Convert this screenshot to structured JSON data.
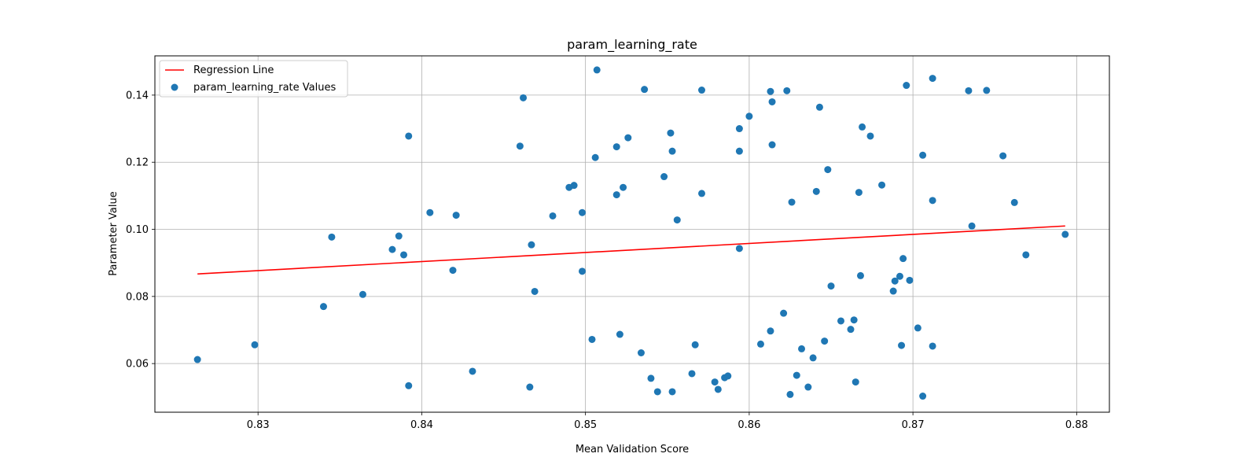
{
  "chart_data": {
    "type": "scatter",
    "title": "param_learning_rate",
    "xlabel": "Mean Validation Score",
    "ylabel": "Parameter Value",
    "xlim": [
      0.8237,
      0.882
    ],
    "ylim": [
      0.0455,
      0.1517
    ],
    "xticks": [
      0.83,
      0.84,
      0.85,
      0.86,
      0.87,
      0.88
    ],
    "yticks": [
      0.06,
      0.08,
      0.1,
      0.12,
      0.14
    ],
    "xtick_labels": [
      "0.83",
      "0.84",
      "0.85",
      "0.86",
      "0.87",
      "0.88"
    ],
    "ytick_labels": [
      "0.06",
      "0.08",
      "0.10",
      "0.12",
      "0.14"
    ],
    "grid": true,
    "legend_position": "top-left",
    "legend": [
      "Regression Line",
      "param_learning_rate Values"
    ],
    "series": [
      {
        "name": "Regression Line",
        "kind": "line",
        "color": "#ff0000",
        "points": [
          [
            0.8263,
            0.0867
          ],
          [
            0.8793,
            0.101
          ]
        ]
      },
      {
        "name": "param_learning_rate Values",
        "kind": "scatter",
        "color": "#1f77b4",
        "points": [
          [
            0.8263,
            0.0612
          ],
          [
            0.8298,
            0.0656
          ],
          [
            0.834,
            0.077
          ],
          [
            0.8345,
            0.0977
          ],
          [
            0.8364,
            0.0806
          ],
          [
            0.8382,
            0.094
          ],
          [
            0.8386,
            0.098
          ],
          [
            0.8389,
            0.0924
          ],
          [
            0.8392,
            0.1278
          ],
          [
            0.8392,
            0.0534
          ],
          [
            0.8405,
            0.105
          ],
          [
            0.8419,
            0.0878
          ],
          [
            0.8421,
            0.1042
          ],
          [
            0.8431,
            0.0577
          ],
          [
            0.846,
            0.1248
          ],
          [
            0.8462,
            0.1392
          ],
          [
            0.8466,
            0.053
          ],
          [
            0.8467,
            0.0954
          ],
          [
            0.8469,
            0.0815
          ],
          [
            0.848,
            0.104
          ],
          [
            0.849,
            0.1125
          ],
          [
            0.8493,
            0.1131
          ],
          [
            0.8498,
            0.0875
          ],
          [
            0.8498,
            0.105
          ],
          [
            0.8504,
            0.0672
          ],
          [
            0.8506,
            0.1214
          ],
          [
            0.8507,
            0.1475
          ],
          [
            0.8519,
            0.1246
          ],
          [
            0.8519,
            0.1103
          ],
          [
            0.8521,
            0.0687
          ],
          [
            0.8523,
            0.1125
          ],
          [
            0.8526,
            0.1273
          ],
          [
            0.8534,
            0.0632
          ],
          [
            0.8536,
            0.1417
          ],
          [
            0.854,
            0.0556
          ],
          [
            0.8544,
            0.0516
          ],
          [
            0.8548,
            0.1157
          ],
          [
            0.8552,
            0.1287
          ],
          [
            0.8553,
            0.1233
          ],
          [
            0.8553,
            0.0516
          ],
          [
            0.8556,
            0.1028
          ],
          [
            0.8565,
            0.057
          ],
          [
            0.8567,
            0.0656
          ],
          [
            0.8571,
            0.1415
          ],
          [
            0.8571,
            0.1107
          ],
          [
            0.8579,
            0.0545
          ],
          [
            0.8581,
            0.0523
          ],
          [
            0.8585,
            0.0558
          ],
          [
            0.8587,
            0.0563
          ],
          [
            0.8594,
            0.0943
          ],
          [
            0.8594,
            0.13
          ],
          [
            0.8594,
            0.1233
          ],
          [
            0.86,
            0.1337
          ],
          [
            0.8607,
            0.0658
          ],
          [
            0.8613,
            0.0697
          ],
          [
            0.8613,
            0.1411
          ],
          [
            0.8614,
            0.138
          ],
          [
            0.8614,
            0.1252
          ],
          [
            0.8621,
            0.075
          ],
          [
            0.8623,
            0.1413
          ],
          [
            0.8625,
            0.0508
          ],
          [
            0.8626,
            0.1081
          ],
          [
            0.8629,
            0.0565
          ],
          [
            0.8632,
            0.0644
          ],
          [
            0.8636,
            0.053
          ],
          [
            0.8639,
            0.0617
          ],
          [
            0.8641,
            0.1113
          ],
          [
            0.8643,
            0.1364
          ],
          [
            0.8646,
            0.0667
          ],
          [
            0.8648,
            0.1178
          ],
          [
            0.865,
            0.0831
          ],
          [
            0.8656,
            0.0727
          ],
          [
            0.8662,
            0.0702
          ],
          [
            0.8664,
            0.073
          ],
          [
            0.8665,
            0.0545
          ],
          [
            0.8667,
            0.111
          ],
          [
            0.8668,
            0.0862
          ],
          [
            0.8669,
            0.1305
          ],
          [
            0.8674,
            0.1278
          ],
          [
            0.8681,
            0.1132
          ],
          [
            0.8688,
            0.0816
          ],
          [
            0.8689,
            0.0846
          ],
          [
            0.8692,
            0.086
          ],
          [
            0.8693,
            0.0654
          ],
          [
            0.8694,
            0.0913
          ],
          [
            0.8696,
            0.1429
          ],
          [
            0.8698,
            0.0848
          ],
          [
            0.8703,
            0.0706
          ],
          [
            0.8706,
            0.1221
          ],
          [
            0.8706,
            0.0503
          ],
          [
            0.8712,
            0.145
          ],
          [
            0.8712,
            0.1086
          ],
          [
            0.8712,
            0.0652
          ],
          [
            0.8734,
            0.1413
          ],
          [
            0.8736,
            0.101
          ],
          [
            0.8745,
            0.1414
          ],
          [
            0.8755,
            0.1219
          ],
          [
            0.8762,
            0.108
          ],
          [
            0.8769,
            0.0924
          ],
          [
            0.8793,
            0.0985
          ]
        ]
      }
    ]
  }
}
